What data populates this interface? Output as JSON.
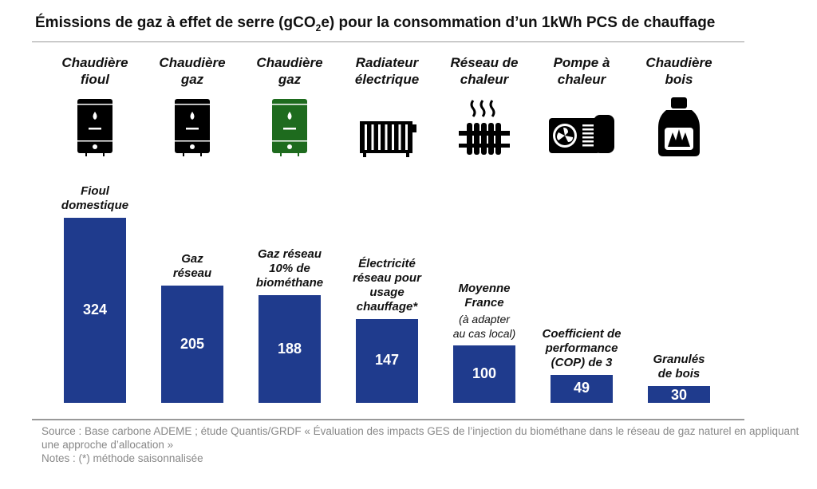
{
  "title_pre": "Émissions de gaz à effet de serre (gCO",
  "title_sub": "2",
  "title_post": "e) pour la consommation d’un 1kWh PCS de chauffage",
  "colors": {
    "bar": "#1f3b8d",
    "green_icon": "#1e6b1e",
    "icon": "#000000"
  },
  "chart_data": {
    "type": "bar",
    "title": "Émissions de gaz à effet de serre (gCO2e) pour la consommation d’un 1kWh PCS de chauffage",
    "categories": [
      "Chaudière\nfioul",
      "Chaudière\ngaz",
      "Chaudière\ngaz",
      "Radiateur\nélectrique",
      "Réseau de\nchaleur",
      "Pompe à\nchaleur",
      "Chaudière\nbois"
    ],
    "icons": [
      "oil-boiler-icon",
      "gas-boiler-icon",
      "green-gas-boiler-icon",
      "electric-radiator-icon",
      "heat-network-icon",
      "heat-pump-icon",
      "wood-boiler-icon"
    ],
    "bar_labels": [
      "Fioul\ndomestique",
      "Gaz\nréseau",
      "Gaz réseau\n10% de\nbiométhane",
      "Électricité\nréseau pour\nusage\nchauffage*",
      "Moyenne\nFrance",
      "Coefficient de\nperformance\n(COP) de 3",
      "Granulés\nde bois"
    ],
    "bar_notes": [
      "",
      "",
      "",
      "",
      "(à adapter\nau cas local)",
      "",
      ""
    ],
    "values": [
      324,
      205,
      188,
      147,
      100,
      49,
      30
    ],
    "unit": "gCO2e/kWh PCS",
    "ylim": [
      0,
      324
    ],
    "grid": false
  },
  "source": "Source : Base carbone ADEME ; étude Quantis/GRDF « Évaluation des impacts GES de l’injection du biométhane dans le réseau de gaz naturel en appliquant une approche d’allocation »",
  "notes": "Notes : (*) méthode saisonnalisée"
}
